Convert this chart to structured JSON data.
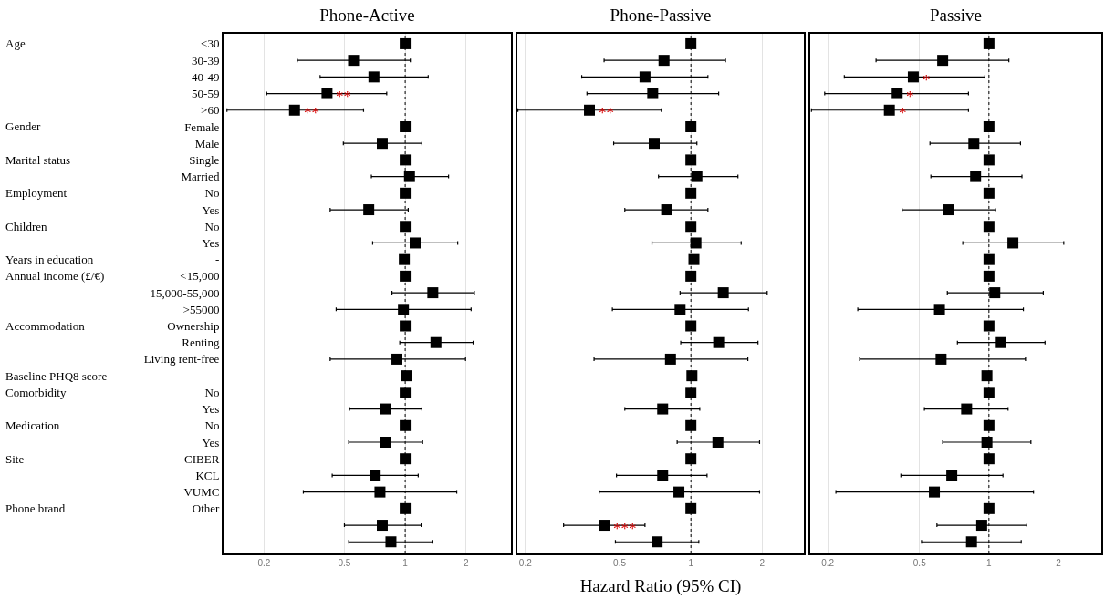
{
  "chart_data": [
    {
      "type": "scatter",
      "orientation": "horizontal",
      "title": "Phone-Active",
      "categories": [
        "<30",
        "30-39",
        "40-49",
        "50-59",
        ">60",
        "Female",
        "Male",
        "Single",
        "Married",
        "No",
        "Yes",
        "No",
        "Yes",
        "-",
        "<15,000",
        "15,000-55,000",
        ">55000",
        "Ownership",
        "Renting",
        "Living rent-free",
        "-",
        "No",
        "Yes",
        "No",
        "Yes",
        "CIBER",
        "KCL",
        "VUMC",
        "Other",
        null,
        null
      ],
      "values": [
        1,
        0.555,
        0.7,
        0.41,
        0.283,
        1,
        0.77,
        1,
        1.05,
        1,
        0.66,
        1,
        1.12,
        0.99,
        1,
        1.37,
        0.98,
        1,
        1.42,
        0.91,
        1.01,
        1,
        0.8,
        1,
        0.8,
        1,
        0.71,
        0.75,
        1,
        0.77,
        0.85
      ],
      "errors": [
        null,
        [
          0.292,
          1.06
        ],
        [
          0.379,
          1.3
        ],
        [
          0.206,
          0.81
        ],
        [
          0.131,
          0.622
        ],
        null,
        [
          0.494,
          1.21
        ],
        null,
        [
          0.68,
          1.64
        ],
        null,
        [
          0.425,
          1.035
        ],
        null,
        [
          0.69,
          1.82
        ],
        null,
        null,
        [
          0.86,
          2.2
        ],
        [
          0.455,
          2.12
        ],
        null,
        [
          0.94,
          2.17
        ],
        [
          0.425,
          1.99
        ],
        null,
        null,
        [
          0.53,
          1.21
        ],
        null,
        [
          0.525,
          1.22
        ],
        null,
        [
          0.435,
          1.16
        ],
        [
          0.313,
          1.8
        ],
        null,
        [
          0.5,
          1.2
        ],
        [
          0.525,
          1.36
        ]
      ],
      "value_labels": [
        null,
        null,
        null,
        "**",
        "**",
        null,
        null,
        null,
        null,
        null,
        null,
        null,
        null,
        null,
        null,
        null,
        null,
        null,
        null,
        null,
        null,
        null,
        null,
        null,
        null,
        null,
        null,
        null,
        null,
        null,
        null
      ],
      "color": "#000000",
      "marker": "square",
      "log": "x",
      "xlim": [
        0.126,
        3.34
      ],
      "xticks": [
        0.2,
        0.5,
        1,
        2
      ],
      "grid": "x",
      "ref_lines": [
        {
          "axis": "x",
          "value": 1,
          "line_style": "dotted",
          "color": "#000000"
        }
      ],
      "y2_categories": [
        "Age",
        null,
        null,
        null,
        null,
        "Gender",
        null,
        "Marital status",
        null,
        "Employment",
        null,
        "Children",
        null,
        "Years in education",
        "Annual income (£/€)",
        null,
        null,
        "Accommodation",
        null,
        null,
        "Baseline PHQ8 score",
        "Comorbidity",
        null,
        "Medication",
        null,
        "Site",
        null,
        null,
        "Phone brand",
        null,
        null
      ]
    },
    {
      "type": "scatter",
      "orientation": "horizontal",
      "title": "Phone-Passive",
      "xlabel": "Hazard Ratio (95% CI)",
      "values": [
        1,
        0.77,
        0.64,
        0.69,
        0.373,
        1,
        0.7,
        1,
        1.06,
        1,
        0.79,
        1,
        1.05,
        1.03,
        1,
        1.37,
        0.9,
        1,
        1.31,
        0.82,
        1.01,
        1,
        0.76,
        1,
        1.3,
        1,
        0.76,
        0.89,
        1,
        0.43,
        0.72
      ],
      "errors": [
        null,
        [
          0.43,
          1.4
        ],
        [
          0.346,
          1.18
        ],
        [
          0.364,
          1.31
        ],
        [
          0.186,
          0.75
        ],
        null,
        [
          0.472,
          1.06
        ],
        null,
        [
          0.73,
          1.58
        ],
        null,
        [
          0.526,
          1.18
        ],
        null,
        [
          0.685,
          1.63
        ],
        null,
        null,
        [
          0.9,
          2.1
        ],
        [
          0.466,
          1.75
        ],
        null,
        [
          0.906,
          1.92
        ],
        [
          0.39,
          1.74
        ],
        null,
        null,
        [
          0.526,
          1.09
        ],
        null,
        [
          0.875,
          1.95
        ],
        null,
        [
          0.485,
          1.17
        ],
        [
          0.41,
          1.95
        ],
        null,
        [
          0.29,
          0.64
        ],
        [
          0.48,
          1.08
        ]
      ],
      "value_labels": [
        null,
        null,
        null,
        null,
        "**",
        null,
        null,
        null,
        null,
        null,
        null,
        null,
        null,
        null,
        null,
        null,
        null,
        null,
        null,
        null,
        null,
        null,
        null,
        null,
        null,
        null,
        null,
        null,
        null,
        "***",
        null
      ],
      "color": "#000000",
      "marker": "square",
      "log": "x",
      "xlim": [
        0.185,
        3.0
      ],
      "xticks": [
        0.2,
        0.5,
        1,
        2
      ],
      "grid": "x",
      "tick_labels": "x",
      "ref_lines": [
        {
          "axis": "x",
          "value": 1,
          "line_style": "dotted",
          "color": "#000000"
        }
      ]
    },
    {
      "type": "scatter",
      "orientation": "horizontal",
      "title": "Passive",
      "values": [
        1,
        0.63,
        0.47,
        0.4,
        0.37,
        1,
        0.86,
        1,
        0.875,
        1,
        0.67,
        1,
        1.27,
        1,
        1,
        1.06,
        0.61,
        1,
        1.12,
        0.62,
        0.98,
        1,
        0.8,
        1,
        0.98,
        1,
        0.69,
        0.58,
        1,
        0.93,
        0.84
      ],
      "errors": [
        null,
        [
          0.324,
          1.22
        ],
        [
          0.236,
          0.96
        ],
        [
          0.194,
          0.815
        ],
        [
          0.17,
          0.815
        ],
        null,
        [
          0.555,
          1.37
        ],
        null,
        [
          0.56,
          1.39
        ],
        null,
        [
          0.42,
          1.07
        ],
        null,
        [
          0.77,
          2.11
        ],
        null,
        null,
        [
          0.66,
          1.72
        ],
        [
          0.27,
          1.41
        ],
        null,
        [
          0.73,
          1.75
        ],
        [
          0.275,
          1.44
        ],
        null,
        null,
        [
          0.525,
          1.21
        ],
        null,
        [
          0.63,
          1.52
        ],
        null,
        [
          0.415,
          1.15
        ],
        [
          0.217,
          1.56
        ],
        null,
        [
          0.595,
          1.46
        ],
        [
          0.51,
          1.38
        ]
      ],
      "value_labels": [
        null,
        null,
        "*",
        "*",
        "*",
        null,
        null,
        null,
        null,
        null,
        null,
        null,
        null,
        null,
        null,
        null,
        null,
        null,
        null,
        null,
        null,
        null,
        null,
        null,
        null,
        null,
        null,
        null,
        null,
        null,
        null
      ],
      "color": "#000000",
      "marker": "square",
      "log": "x",
      "xlim": [
        0.168,
        3.07
      ],
      "xticks": [
        0.2,
        0.5,
        1,
        2
      ],
      "grid": "x",
      "tick_labels": "x",
      "ref_lines": [
        {
          "axis": "x",
          "value": 1,
          "line_style": "dotted",
          "color": "#000000"
        }
      ]
    }
  ]
}
